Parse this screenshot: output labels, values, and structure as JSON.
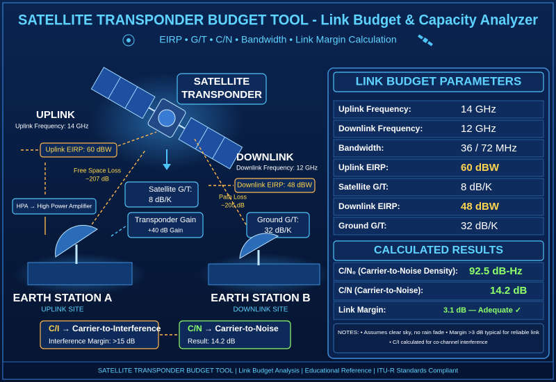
{
  "header": {
    "title": "SATELLITE TRANSPONDER BUDGET TOOL - Link Budget & Capacity Analyzer",
    "subtitle": "EIRP • G/T • C/N • Bandwidth • Link Margin Calculation"
  },
  "diagram": {
    "satellite_label": [
      "SATELLITE",
      "TRANSPONDER"
    ],
    "uplink": {
      "heading": "UPLINK",
      "frequency": "Uplink Frequency: 14 GHz",
      "eirp": "Uplink EIRP: 60 dBW",
      "loss": [
        "Free Space Loss",
        "~207 dB"
      ],
      "hpa": "HPA → High Power Amplifier"
    },
    "satellite": {
      "gt": [
        "Satellite G/T:",
        "8 dB/K"
      ],
      "gain": [
        "Transponder Gain",
        "+40 dB Gain"
      ]
    },
    "downlink": {
      "heading": "DOWNLINK",
      "frequency": "Downlink Frequency: 12 GHz",
      "eirp": "Downlink EIRP: 48 dBW",
      "loss": [
        "Path Loss",
        "~205 dB"
      ],
      "ground_gt": [
        "Ground G/T:",
        "32 dB/K"
      ]
    },
    "station_a": {
      "name": "EARTH STATION A",
      "role": "UPLINK SITE"
    },
    "station_b": {
      "name": "EARTH STATION B",
      "role": "DOWNLINK SITE"
    },
    "ci": {
      "symbol": "C/I",
      "title": "→ Carrier-to-Interference",
      "detail": "Interference Margin: >15 dB"
    },
    "cn": {
      "symbol": "C/N",
      "title": "→ Carrier-to-Noise",
      "detail": "Result: 14.2 dB"
    }
  },
  "panel": {
    "title": "LINK BUDGET PARAMETERS",
    "rows": [
      [
        "Uplink Frequency:",
        "14 GHz"
      ],
      [
        "Downlink Frequency:",
        "12 GHz"
      ],
      [
        "Bandwidth:",
        "36 / 72 MHz"
      ],
      [
        "Uplink EIRP:",
        "60 dBW"
      ],
      [
        "Satellite G/T:",
        "8 dB/K"
      ],
      [
        "Downlink EIRP:",
        "48 dBW"
      ],
      [
        "Ground G/T:",
        "32 dB/K"
      ]
    ],
    "results_title": "CALCULATED RESULTS",
    "results": [
      [
        "C/N₀ (Carrier-to-Noise Density):",
        "92.5 dB-Hz"
      ],
      [
        "C/N (Carrier-to-Noise):",
        "14.2 dB"
      ],
      [
        "Link Margin:",
        "3.1 dB — Adequate ✓"
      ]
    ],
    "notes": [
      "NOTES: • Assumes clear sky, no rain fade • Margin >3 dB typical for reliable link",
      "• C/I calculated for co-channel interference"
    ]
  },
  "footer": "SATELLITE TRANSPONDER BUDGET TOOL | Link Budget Analysis | Educational Reference | ITU-R Standards Compliant"
}
